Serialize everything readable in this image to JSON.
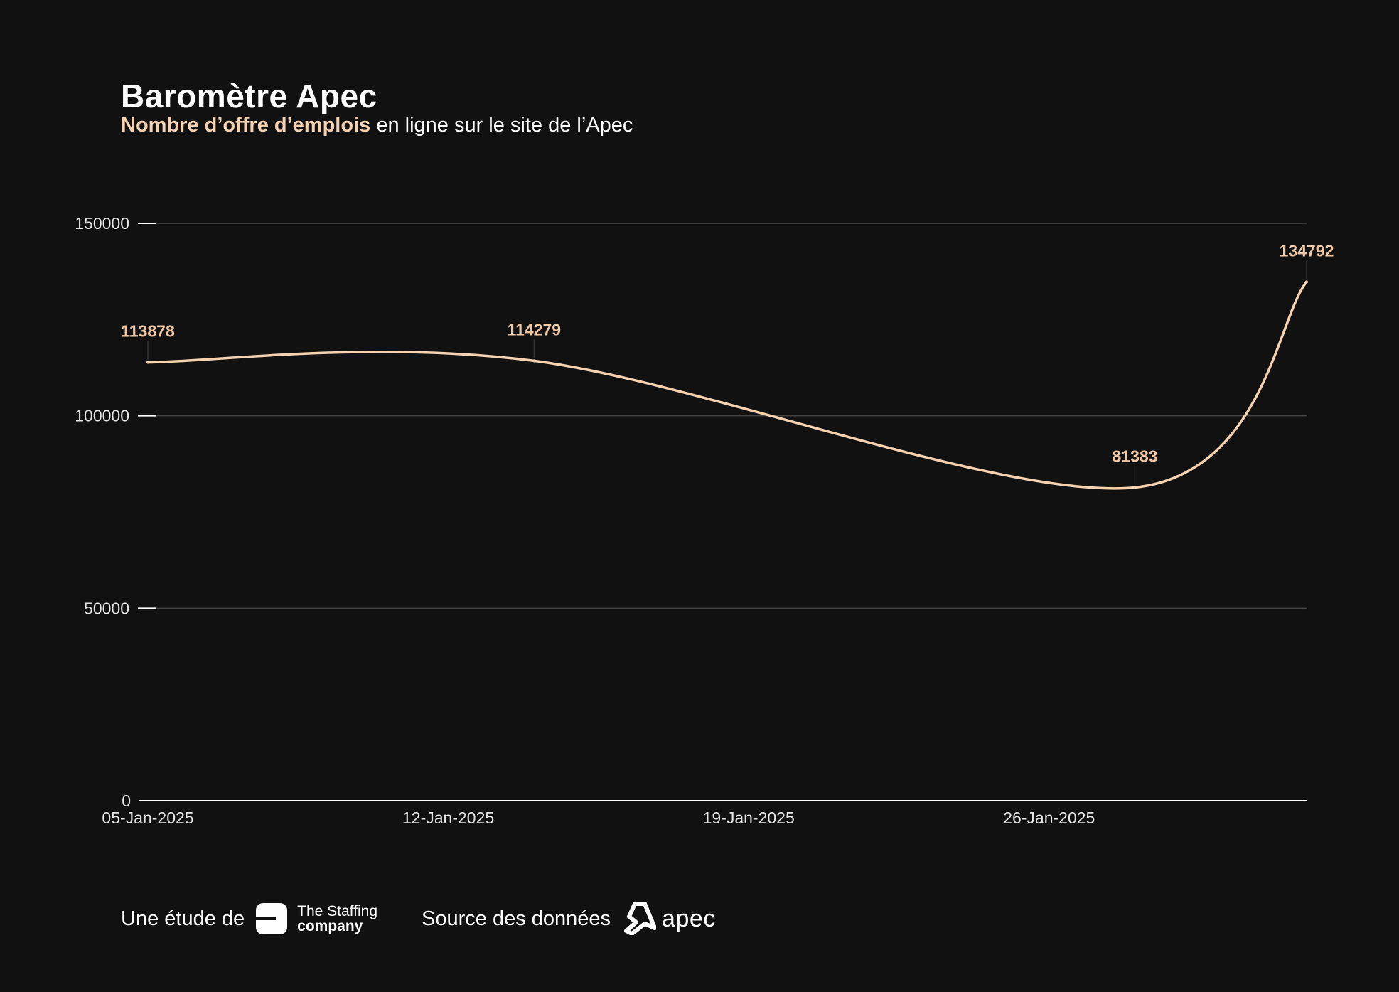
{
  "header": {
    "title": "Baromètre Apec",
    "subtitle_highlight": "Nombre d’offre d’emplois",
    "subtitle_rest": " en ligne sur le site de l’Apec"
  },
  "footer": {
    "study_label": "Une étude de",
    "staffing_line1": "The Staffing",
    "staffing_line2": "company",
    "source_label": "Source des données",
    "apec_label": "apec"
  },
  "colors": {
    "background": "#111111",
    "line": "#f7d2b0",
    "data_label": "#f2c9a6",
    "grid": "#444444",
    "axis_text": "#e6e6e6"
  },
  "chart_data": {
    "type": "line",
    "title": "Baromètre Apec",
    "subtitle": "Nombre d’offre d’emplois en ligne sur le site de l’Apec",
    "x_type": "date",
    "x_ticks": [
      "2025-01-05",
      "2025-01-12",
      "2025-01-19",
      "2025-01-26"
    ],
    "x_tick_labels": [
      "05-Jan-2025",
      "12-Jan-2025",
      "19-Jan-2025",
      "26-Jan-2025"
    ],
    "xlim": [
      "2025-01-05",
      "2025-02-01"
    ],
    "ylim": [
      0,
      150000
    ],
    "y_ticks": [
      0,
      50000,
      100000,
      150000
    ],
    "grid": true,
    "legend": "none",
    "series": [
      {
        "points": [
          {
            "x": "2025-01-05",
            "y": 113878,
            "label": "113878"
          },
          {
            "x": "2025-01-14",
            "y": 114279,
            "label": "114279"
          },
          {
            "x": "2025-01-28",
            "y": 81383,
            "label": "81383"
          },
          {
            "x": "2025-02-01",
            "y": 134792,
            "label": "134792"
          }
        ]
      }
    ]
  }
}
